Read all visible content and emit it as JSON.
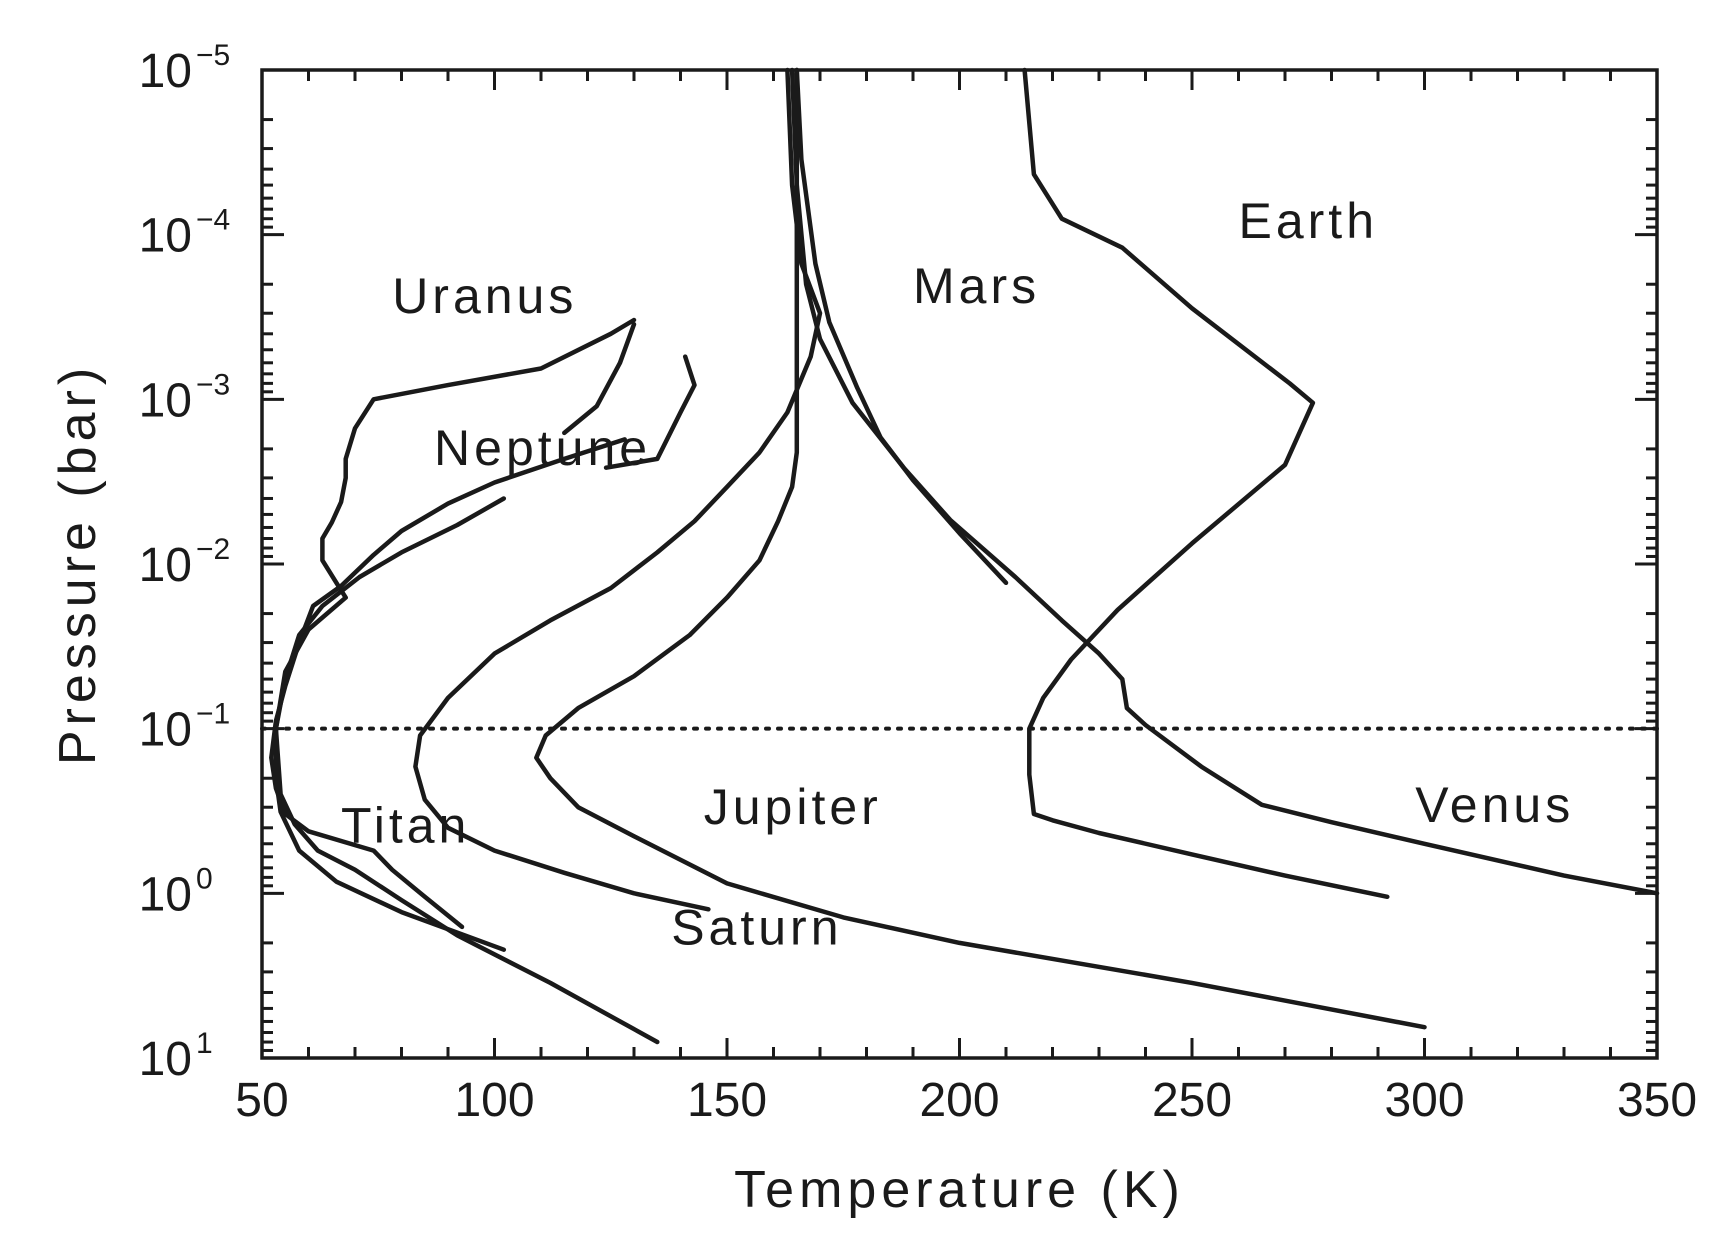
{
  "chart_data": {
    "type": "line",
    "xlabel": "Temperature (K)",
    "ylabel": "Pressure (bar)",
    "xlim": [
      50,
      350
    ],
    "ylim": [
      10,
      1e-05
    ],
    "y_scale": "log",
    "y_inverted": true,
    "grid": false,
    "legend": "none",
    "x_ticks": [
      "50",
      "100",
      "150",
      "200",
      "250",
      "300",
      "350"
    ],
    "y_ticks": [
      {
        "value": 1e-05,
        "base": "10",
        "exp": "−5"
      },
      {
        "value": 0.0001,
        "base": "10",
        "exp": "−4"
      },
      {
        "value": 0.001,
        "base": "10",
        "exp": "−3"
      },
      {
        "value": 0.01,
        "base": "10",
        "exp": "−2"
      },
      {
        "value": 0.1,
        "base": "10",
        "exp": "−1"
      },
      {
        "value": 1,
        "base": "10",
        "exp": "0"
      },
      {
        "value": 10,
        "base": "10",
        "exp": "1"
      }
    ],
    "reference_line": {
      "y": 0.1,
      "style": "dotted"
    },
    "series": [
      {
        "name": "Venus",
        "label_at": [
          298,
          0.37
        ],
        "points": [
          [
            350,
            1.0
          ],
          [
            330,
            0.78
          ],
          [
            300,
            0.5
          ],
          [
            280,
            0.37
          ],
          [
            265,
            0.29
          ],
          [
            252,
            0.17
          ],
          [
            240,
            0.095
          ],
          [
            236,
            0.075
          ],
          [
            235,
            0.05
          ],
          [
            230,
            0.035
          ],
          [
            222,
            0.022
          ],
          [
            212,
            0.012
          ],
          [
            198,
            0.0054
          ],
          [
            188,
            0.0026
          ],
          [
            177,
            0.00105
          ],
          [
            170,
            0.00043
          ],
          [
            167,
            0.0002
          ],
          [
            165,
            5e-05
          ],
          [
            164,
            1e-05
          ]
        ]
      },
      {
        "name": "Earth",
        "label_at": [
          260,
          0.000105
        ],
        "points": [
          [
            292,
            1.05
          ],
          [
            270,
            0.78
          ],
          [
            250,
            0.58
          ],
          [
            230,
            0.43
          ],
          [
            220,
            0.36
          ],
          [
            216,
            0.33
          ],
          [
            215,
            0.19
          ],
          [
            215,
            0.1
          ],
          [
            218,
            0.065
          ],
          [
            224,
            0.038
          ],
          [
            234,
            0.019
          ],
          [
            250,
            0.0075
          ],
          [
            270,
            0.0025
          ],
          [
            276,
            0.00105
          ],
          [
            271,
            0.0008
          ],
          [
            250,
            0.00028
          ],
          [
            235,
            0.00012
          ],
          [
            222,
            8e-05
          ],
          [
            216,
            4.3e-05
          ],
          [
            214,
            1e-05
          ]
        ]
      },
      {
        "name": "Mars",
        "label_at": [
          190,
          0.00026
        ],
        "points": [
          [
            210,
            0.013
          ],
          [
            200,
            0.0065
          ],
          [
            190,
            0.0031
          ],
          [
            183,
            0.0017
          ],
          [
            178,
            0.00085
          ],
          [
            172,
            0.00034
          ],
          [
            169,
            0.00015
          ],
          [
            166,
            3.5e-05
          ],
          [
            165,
            1e-05
          ]
        ]
      },
      {
        "name": "Jupiter",
        "label_at": [
          145,
          0.38
        ],
        "points": [
          [
            300,
            6.5
          ],
          [
            250,
            3.5
          ],
          [
            200,
            2.0
          ],
          [
            175,
            1.4
          ],
          [
            150,
            0.87
          ],
          [
            130,
            0.45
          ],
          [
            118,
            0.3
          ],
          [
            112,
            0.2
          ],
          [
            109,
            0.15
          ],
          [
            111,
            0.11
          ],
          [
            118,
            0.075
          ],
          [
            130,
            0.048
          ],
          [
            142,
            0.027
          ],
          [
            150,
            0.016
          ],
          [
            157,
            0.0095
          ],
          [
            161,
            0.0055
          ],
          [
            164,
            0.0034
          ],
          [
            165,
            0.0021
          ],
          [
            165,
            0.001
          ],
          [
            165,
            0.00012
          ],
          [
            165,
            1e-05
          ]
        ]
      },
      {
        "name": "Saturn",
        "label_at": [
          138,
          2.05
        ],
        "points": [
          [
            146,
            1.25
          ],
          [
            130,
            1.0
          ],
          [
            115,
            0.75
          ],
          [
            100,
            0.55
          ],
          [
            90,
            0.4
          ],
          [
            85,
            0.27
          ],
          [
            83,
            0.17
          ],
          [
            84,
            0.11
          ],
          [
            90,
            0.065
          ],
          [
            100,
            0.035
          ],
          [
            112,
            0.022
          ],
          [
            125,
            0.014
          ],
          [
            135,
            0.0085
          ],
          [
            143,
            0.0055
          ],
          [
            150,
            0.0034
          ],
          [
            157,
            0.0021
          ],
          [
            163,
            0.0012
          ],
          [
            168,
            0.00055
          ],
          [
            170,
            0.0003
          ],
          [
            166,
            0.00015
          ],
          [
            164,
            5e-05
          ],
          [
            163,
            1e-05
          ]
        ]
      },
      {
        "name": "Titan",
        "label_at": [
          67,
          0.49
        ],
        "points": [
          [
            93,
            1.6
          ],
          [
            85,
            1.05
          ],
          [
            78,
            0.72
          ],
          [
            74,
            0.55
          ],
          [
            60,
            0.42
          ],
          [
            55,
            0.33
          ],
          [
            53,
            0.23
          ],
          [
            52,
            0.15
          ],
          [
            53,
            0.09
          ],
          [
            55,
            0.055
          ],
          [
            58,
            0.03
          ],
          [
            61,
            0.018
          ],
          [
            67,
            0.0136
          ],
          [
            74,
            0.0088
          ],
          [
            80,
            0.0063
          ],
          [
            90,
            0.0043
          ],
          [
            100,
            0.0032
          ],
          [
            115,
            0.0023
          ],
          [
            128,
            0.00175
          ]
        ]
      },
      {
        "name": "Neptune",
        "label_at": [
          87,
          0.0025
        ],
        "points": [
          [
            135,
            8.0
          ],
          [
            112,
            3.5
          ],
          [
            92,
            1.8
          ],
          [
            80,
            1.1
          ],
          [
            70,
            0.72
          ],
          [
            62,
            0.55
          ],
          [
            57,
            0.38
          ],
          [
            54,
            0.25
          ],
          [
            53,
            0.1
          ],
          [
            55,
            0.05
          ],
          [
            58,
            0.027
          ],
          [
            63,
            0.018
          ],
          [
            71,
            0.012
          ],
          [
            80,
            0.0085
          ],
          [
            92,
            0.0058
          ],
          [
            102,
            0.004
          ]
        ]
      },
      {
        "name": "Uranus",
        "label_at": [
          78,
          0.0003
        ],
        "points": [
          [
            102,
            2.2
          ],
          [
            80,
            1.3
          ],
          [
            66,
            0.85
          ],
          [
            58,
            0.55
          ],
          [
            54,
            0.32
          ],
          [
            53,
            0.2
          ],
          [
            53,
            0.1
          ],
          [
            55,
            0.045
          ],
          [
            60,
            0.025
          ],
          [
            68,
            0.016
          ],
          [
            66,
            0.013
          ],
          [
            63,
            0.0095
          ],
          [
            63,
            0.007
          ],
          [
            65,
            0.0056
          ],
          [
            67,
            0.0042
          ],
          [
            68,
            0.003
          ],
          [
            68,
            0.0023
          ],
          [
            70,
            0.0015
          ],
          [
            74,
            0.001
          ],
          [
            90,
            0.00082
          ],
          [
            110,
            0.00065
          ],
          [
            125,
            0.0004
          ],
          [
            130,
            0.00033
          ]
        ]
      },
      {
        "name": "",
        "points": [
          [
            115,
            0.0016
          ],
          [
            122,
            0.0011
          ],
          [
            127,
            0.0006
          ],
          [
            130,
            0.00035
          ]
        ]
      },
      {
        "name": "",
        "points": [
          [
            124,
            0.0026
          ],
          [
            135,
            0.0023
          ],
          [
            140,
            0.0012
          ],
          [
            143,
            0.00082
          ],
          [
            141,
            0.00055
          ]
        ]
      }
    ]
  }
}
